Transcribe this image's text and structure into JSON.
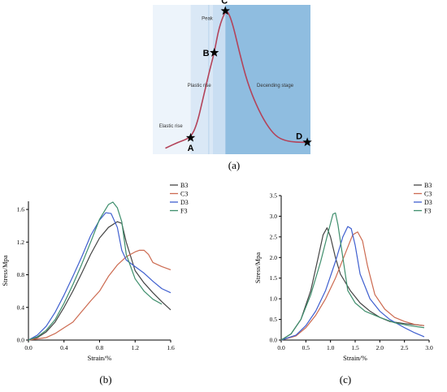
{
  "chart_data": [
    {
      "id": "a",
      "type": "line",
      "panel_label": "(a)",
      "stage_labels": [
        "Elastic rise",
        "Plastic rise",
        "Peak",
        "Decending stage"
      ],
      "points": [
        {
          "name": "A",
          "x": 0.24,
          "y": 0.11
        },
        {
          "name": "B",
          "x": 0.39,
          "y": 0.68
        },
        {
          "name": "C",
          "x": 0.46,
          "y": 0.96
        },
        {
          "name": "D",
          "x": 0.98,
          "y": 0.08
        }
      ],
      "curve": [
        [
          0.08,
          0.04
        ],
        [
          0.16,
          0.08
        ],
        [
          0.24,
          0.11
        ],
        [
          0.28,
          0.2
        ],
        [
          0.32,
          0.38
        ],
        [
          0.36,
          0.56
        ],
        [
          0.39,
          0.68
        ],
        [
          0.42,
          0.85
        ],
        [
          0.46,
          0.96
        ],
        [
          0.48,
          0.95
        ],
        [
          0.51,
          0.86
        ],
        [
          0.55,
          0.68
        ],
        [
          0.6,
          0.48
        ],
        [
          0.66,
          0.32
        ],
        [
          0.72,
          0.2
        ],
        [
          0.78,
          0.12
        ],
        [
          0.84,
          0.09
        ],
        [
          0.91,
          0.08
        ],
        [
          0.98,
          0.08
        ]
      ],
      "regions": [
        {
          "from": 0.0,
          "to": 0.24,
          "color": "#edf4fb"
        },
        {
          "from": 0.24,
          "to": 0.38,
          "color": "#dae8f6"
        },
        {
          "from": 0.38,
          "to": 0.46,
          "color": "#c9def2"
        },
        {
          "from": 0.46,
          "to": 1.0,
          "color": "#8fbde0"
        }
      ],
      "curve_color": "#b3435a"
    },
    {
      "id": "b",
      "type": "line",
      "panel_label": "(b)",
      "xlabel": "Strain/%",
      "ylabel": "Stress/Mpa",
      "xlim": [
        0,
        1.6
      ],
      "ylim": [
        0,
        1.7
      ],
      "xticks": [
        "0.0",
        "0.4",
        "0.8",
        "1.2",
        "1.6"
      ],
      "yticks": [
        "0.0",
        "0.4",
        "0.8",
        "1.2",
        "1.6"
      ],
      "legend_position": "top-right",
      "series": [
        {
          "name": "B3",
          "color": "#444444",
          "points": [
            [
              0,
              0
            ],
            [
              0.1,
              0.03
            ],
            [
              0.2,
              0.1
            ],
            [
              0.3,
              0.22
            ],
            [
              0.4,
              0.4
            ],
            [
              0.5,
              0.6
            ],
            [
              0.6,
              0.82
            ],
            [
              0.7,
              1.05
            ],
            [
              0.8,
              1.25
            ],
            [
              0.9,
              1.38
            ],
            [
              1.0,
              1.45
            ],
            [
              1.05,
              1.43
            ],
            [
              1.1,
              1.2
            ],
            [
              1.2,
              0.85
            ],
            [
              1.3,
              0.7
            ],
            [
              1.4,
              0.58
            ],
            [
              1.5,
              0.47
            ],
            [
              1.6,
              0.37
            ]
          ]
        },
        {
          "name": "C3",
          "color": "#cc6a50",
          "points": [
            [
              0,
              0
            ],
            [
              0.2,
              0.03
            ],
            [
              0.3,
              0.08
            ],
            [
              0.4,
              0.15
            ],
            [
              0.5,
              0.22
            ],
            [
              0.6,
              0.35
            ],
            [
              0.7,
              0.48
            ],
            [
              0.8,
              0.6
            ],
            [
              0.9,
              0.78
            ],
            [
              1.0,
              0.92
            ],
            [
              1.1,
              1.02
            ],
            [
              1.2,
              1.08
            ],
            [
              1.25,
              1.1
            ],
            [
              1.3,
              1.1
            ],
            [
              1.35,
              1.05
            ],
            [
              1.4,
              0.95
            ],
            [
              1.5,
              0.9
            ],
            [
              1.6,
              0.86
            ]
          ]
        },
        {
          "name": "D3",
          "color": "#3f5fcf",
          "points": [
            [
              0,
              0
            ],
            [
              0.1,
              0.06
            ],
            [
              0.2,
              0.17
            ],
            [
              0.3,
              0.34
            ],
            [
              0.4,
              0.55
            ],
            [
              0.5,
              0.78
            ],
            [
              0.6,
              1.02
            ],
            [
              0.7,
              1.28
            ],
            [
              0.8,
              1.47
            ],
            [
              0.87,
              1.56
            ],
            [
              0.93,
              1.55
            ],
            [
              1.0,
              1.38
            ],
            [
              1.05,
              1.1
            ],
            [
              1.1,
              0.98
            ],
            [
              1.2,
              0.9
            ],
            [
              1.3,
              0.82
            ],
            [
              1.4,
              0.72
            ],
            [
              1.5,
              0.63
            ],
            [
              1.6,
              0.58
            ]
          ]
        },
        {
          "name": "F3",
          "color": "#3e8e6c",
          "points": [
            [
              0,
              0
            ],
            [
              0.1,
              0.04
            ],
            [
              0.2,
              0.12
            ],
            [
              0.3,
              0.25
            ],
            [
              0.4,
              0.45
            ],
            [
              0.5,
              0.68
            ],
            [
              0.6,
              0.93
            ],
            [
              0.7,
              1.2
            ],
            [
              0.8,
              1.48
            ],
            [
              0.9,
              1.66
            ],
            [
              0.95,
              1.69
            ],
            [
              1.0,
              1.62
            ],
            [
              1.05,
              1.45
            ],
            [
              1.1,
              1.05
            ],
            [
              1.2,
              0.75
            ],
            [
              1.3,
              0.6
            ],
            [
              1.4,
              0.5
            ],
            [
              1.5,
              0.44
            ]
          ]
        }
      ]
    },
    {
      "id": "c",
      "type": "line",
      "panel_label": "(c)",
      "xlabel": "Strain/%",
      "ylabel": "Stress/Mpa",
      "xlim": [
        0,
        3.0
      ],
      "ylim": [
        0,
        3.5
      ],
      "xticks": [
        "0.0",
        "0.5",
        "1.0",
        "1.5",
        "2.0",
        "2.5",
        "3.0"
      ],
      "yticks": [
        "0.0",
        "0.5",
        "1.0",
        "1.5",
        "2.0",
        "2.5",
        "3.0",
        "3.5"
      ],
      "legend_position": "top-right",
      "series": [
        {
          "name": "B3",
          "color": "#444444",
          "points": [
            [
              0,
              0
            ],
            [
              0.2,
              0.15
            ],
            [
              0.4,
              0.5
            ],
            [
              0.6,
              1.2
            ],
            [
              0.75,
              2.0
            ],
            [
              0.85,
              2.55
            ],
            [
              0.93,
              2.72
            ],
            [
              1.0,
              2.5
            ],
            [
              1.1,
              2.0
            ],
            [
              1.2,
              1.6
            ],
            [
              1.4,
              1.2
            ],
            [
              1.6,
              0.9
            ],
            [
              1.8,
              0.7
            ],
            [
              2.0,
              0.55
            ],
            [
              2.2,
              0.45
            ],
            [
              2.5,
              0.4
            ],
            [
              2.9,
              0.35
            ]
          ]
        },
        {
          "name": "C3",
          "color": "#cc6a50",
          "points": [
            [
              0,
              0
            ],
            [
              0.3,
              0.1
            ],
            [
              0.5,
              0.3
            ],
            [
              0.7,
              0.6
            ],
            [
              0.9,
              1.0
            ],
            [
              1.1,
              1.5
            ],
            [
              1.3,
              2.1
            ],
            [
              1.45,
              2.55
            ],
            [
              1.55,
              2.62
            ],
            [
              1.65,
              2.4
            ],
            [
              1.75,
              1.8
            ],
            [
              1.9,
              1.1
            ],
            [
              2.1,
              0.75
            ],
            [
              2.3,
              0.55
            ],
            [
              2.5,
              0.45
            ],
            [
              2.7,
              0.38
            ],
            [
              2.9,
              0.35
            ]
          ]
        },
        {
          "name": "D3",
          "color": "#3f5fcf",
          "points": [
            [
              0,
              0
            ],
            [
              0.3,
              0.12
            ],
            [
              0.5,
              0.35
            ],
            [
              0.7,
              0.7
            ],
            [
              0.9,
              1.2
            ],
            [
              1.1,
              1.9
            ],
            [
              1.25,
              2.5
            ],
            [
              1.35,
              2.75
            ],
            [
              1.42,
              2.7
            ],
            [
              1.5,
              2.3
            ],
            [
              1.6,
              1.6
            ],
            [
              1.8,
              1.0
            ],
            [
              2.0,
              0.7
            ],
            [
              2.2,
              0.5
            ],
            [
              2.5,
              0.3
            ],
            [
              2.7,
              0.18
            ],
            [
              2.9,
              0.08
            ]
          ]
        },
        {
          "name": "F3",
          "color": "#3e8e6c",
          "points": [
            [
              0,
              0
            ],
            [
              0.2,
              0.15
            ],
            [
              0.4,
              0.5
            ],
            [
              0.6,
              1.1
            ],
            [
              0.8,
              1.9
            ],
            [
              0.95,
              2.6
            ],
            [
              1.05,
              3.05
            ],
            [
              1.1,
              3.08
            ],
            [
              1.15,
              2.8
            ],
            [
              1.25,
              2.0
            ],
            [
              1.35,
              1.2
            ],
            [
              1.5,
              0.9
            ],
            [
              1.7,
              0.7
            ],
            [
              2.0,
              0.55
            ],
            [
              2.3,
              0.42
            ],
            [
              2.6,
              0.35
            ],
            [
              2.9,
              0.3
            ]
          ]
        }
      ]
    }
  ]
}
